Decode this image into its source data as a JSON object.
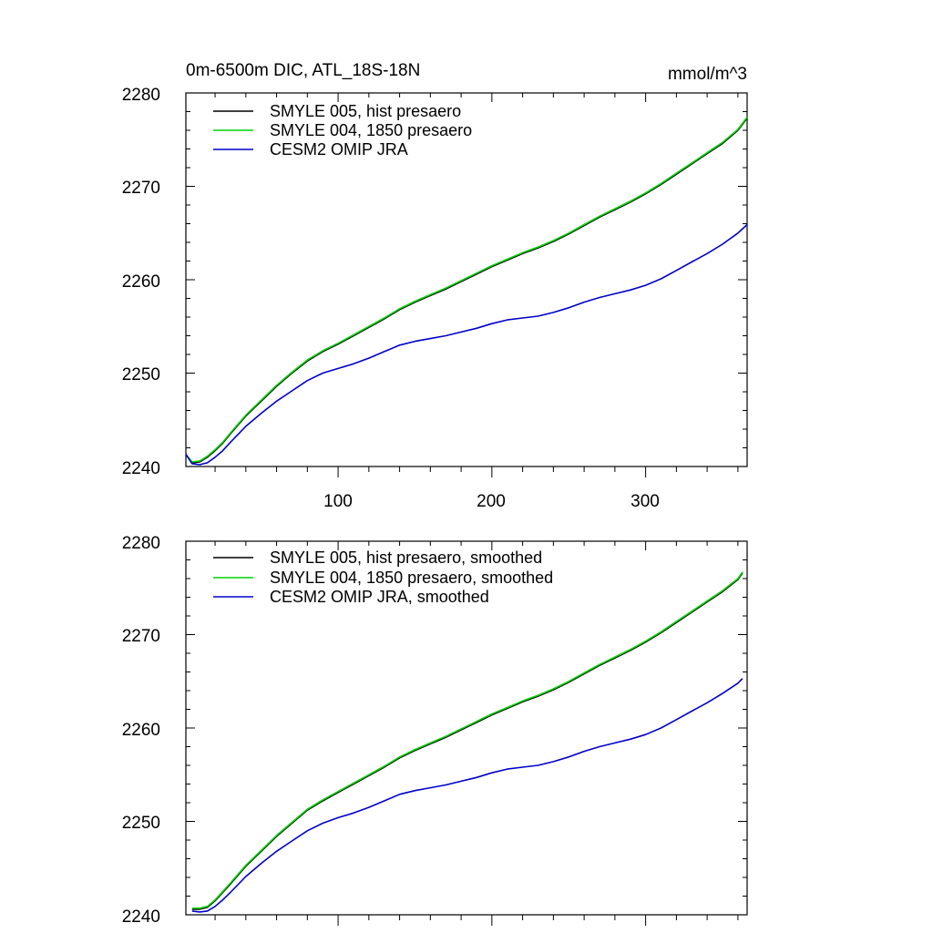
{
  "page": {
    "title": "0m-6500m DIC, ATL_18S-18N",
    "units": "mmol/m^3"
  },
  "colors": {
    "black": "#000000",
    "green": "#00d400",
    "blue": "#0000cc"
  },
  "chart_data": [
    {
      "type": "line",
      "panel": "top",
      "title": "0m-6500m DIC, ATL_18S-18N",
      "units_label": "mmol/m^3",
      "xlim": [
        1,
        366
      ],
      "ylim": [
        2240,
        2280
      ],
      "xticks": [
        100,
        200,
        300
      ],
      "yticks": [
        2240,
        2250,
        2260,
        2270,
        2280
      ],
      "x_tick_labels": [
        "100",
        "200",
        "300"
      ],
      "y_tick_labels": [
        "2240",
        "2250",
        "2260",
        "2270",
        "2280"
      ],
      "legend_position": "top-left",
      "series": [
        {
          "name": "SMYLE 005, hist presaero",
          "color": "#000000",
          "x": [
            1,
            5,
            10,
            15,
            20,
            25,
            30,
            40,
            50,
            60,
            70,
            80,
            90,
            100,
            110,
            120,
            130,
            140,
            150,
            160,
            170,
            180,
            190,
            200,
            210,
            220,
            230,
            240,
            250,
            260,
            270,
            280,
            290,
            300,
            310,
            320,
            330,
            340,
            350,
            360,
            366
          ],
          "y": [
            2241.3,
            2240.4,
            2240.5,
            2241.0,
            2241.7,
            2242.5,
            2243.5,
            2245.4,
            2247.0,
            2248.6,
            2250.0,
            2251.3,
            2252.3,
            2253.1,
            2254.0,
            2254.9,
            2255.8,
            2256.8,
            2257.6,
            2258.3,
            2259.0,
            2259.8,
            2260.6,
            2261.4,
            2262.1,
            2262.8,
            2263.4,
            2264.1,
            2264.9,
            2265.8,
            2266.7,
            2267.5,
            2268.3,
            2269.2,
            2270.2,
            2271.3,
            2272.4,
            2273.5,
            2274.6,
            2276.0,
            2277.3
          ]
        },
        {
          "name": "SMYLE 004, 1850 presaero",
          "color": "#00d400",
          "x": [
            1,
            5,
            10,
            15,
            20,
            25,
            30,
            40,
            50,
            60,
            70,
            80,
            90,
            100,
            110,
            120,
            130,
            140,
            150,
            160,
            170,
            180,
            190,
            200,
            210,
            220,
            230,
            240,
            250,
            260,
            270,
            280,
            290,
            300,
            310,
            320,
            330,
            340,
            350,
            360,
            366
          ],
          "y": [
            2241.3,
            2240.5,
            2240.6,
            2241.1,
            2241.8,
            2242.6,
            2243.6,
            2245.5,
            2247.1,
            2248.7,
            2250.1,
            2251.4,
            2252.4,
            2253.2,
            2254.1,
            2255.0,
            2255.9,
            2256.9,
            2257.7,
            2258.4,
            2259.1,
            2259.9,
            2260.7,
            2261.5,
            2262.2,
            2262.9,
            2263.5,
            2264.2,
            2265.0,
            2265.9,
            2266.8,
            2267.6,
            2268.4,
            2269.3,
            2270.3,
            2271.4,
            2272.5,
            2273.6,
            2274.7,
            2276.1,
            2277.4
          ]
        },
        {
          "name": "CESM2 OMIP JRA",
          "color": "#0000cc",
          "x": [
            1,
            5,
            10,
            15,
            20,
            25,
            30,
            40,
            50,
            60,
            70,
            80,
            90,
            100,
            110,
            120,
            130,
            140,
            150,
            160,
            170,
            180,
            190,
            200,
            210,
            220,
            230,
            240,
            250,
            260,
            270,
            280,
            290,
            300,
            310,
            320,
            330,
            340,
            350,
            360,
            366
          ],
          "y": [
            2241.3,
            2240.3,
            2240.2,
            2240.4,
            2241.0,
            2241.7,
            2242.6,
            2244.3,
            2245.7,
            2247.0,
            2248.1,
            2249.2,
            2250.0,
            2250.5,
            2251.0,
            2251.6,
            2252.3,
            2253.0,
            2253.4,
            2253.7,
            2254.0,
            2254.4,
            2254.8,
            2255.3,
            2255.7,
            2255.9,
            2256.1,
            2256.5,
            2257.0,
            2257.6,
            2258.1,
            2258.5,
            2258.9,
            2259.4,
            2260.1,
            2261.0,
            2261.9,
            2262.8,
            2263.8,
            2265.0,
            2265.9
          ]
        }
      ]
    },
    {
      "type": "line",
      "panel": "bottom",
      "xlim": [
        1,
        366
      ],
      "ylim": [
        2240,
        2280
      ],
      "yticks": [
        2240,
        2250,
        2260,
        2270,
        2280
      ],
      "y_tick_labels": [
        "2240",
        "2250",
        "2260",
        "2270",
        "2280"
      ],
      "legend_position": "top-left",
      "series": [
        {
          "name": "SMYLE 005, hist presaero, smoothed",
          "color": "#000000",
          "x": [
            5,
            10,
            15,
            20,
            25,
            30,
            40,
            50,
            60,
            70,
            80,
            90,
            100,
            110,
            120,
            130,
            140,
            150,
            160,
            170,
            180,
            190,
            200,
            210,
            220,
            230,
            240,
            250,
            260,
            270,
            280,
            290,
            300,
            310,
            320,
            330,
            340,
            350,
            360,
            363
          ],
          "y": [
            2240.6,
            2240.6,
            2240.8,
            2241.5,
            2242.4,
            2243.3,
            2245.2,
            2246.8,
            2248.4,
            2249.8,
            2251.2,
            2252.2,
            2253.1,
            2254.0,
            2254.9,
            2255.8,
            2256.8,
            2257.6,
            2258.3,
            2259.0,
            2259.8,
            2260.6,
            2261.4,
            2262.1,
            2262.8,
            2263.4,
            2264.1,
            2264.9,
            2265.8,
            2266.7,
            2267.5,
            2268.3,
            2269.2,
            2270.2,
            2271.3,
            2272.4,
            2273.5,
            2274.6,
            2275.9,
            2276.6
          ]
        },
        {
          "name": "SMYLE 004, 1850 presaero, smoothed",
          "color": "#00d400",
          "x": [
            5,
            10,
            15,
            20,
            25,
            30,
            40,
            50,
            60,
            70,
            80,
            90,
            100,
            110,
            120,
            130,
            140,
            150,
            160,
            170,
            180,
            190,
            200,
            210,
            220,
            230,
            240,
            250,
            260,
            270,
            280,
            290,
            300,
            310,
            320,
            330,
            340,
            350,
            360,
            363
          ],
          "y": [
            2240.7,
            2240.7,
            2240.9,
            2241.6,
            2242.5,
            2243.4,
            2245.3,
            2246.9,
            2248.5,
            2249.9,
            2251.3,
            2252.3,
            2253.2,
            2254.1,
            2255.0,
            2255.9,
            2256.9,
            2257.7,
            2258.4,
            2259.1,
            2259.9,
            2260.7,
            2261.5,
            2262.2,
            2262.9,
            2263.5,
            2264.2,
            2265.0,
            2265.9,
            2266.8,
            2267.6,
            2268.4,
            2269.3,
            2270.3,
            2271.4,
            2272.5,
            2273.6,
            2274.7,
            2276.0,
            2276.7
          ]
        },
        {
          "name": "CESM2 OMIP JRA, smoothed",
          "color": "#0000cc",
          "x": [
            5,
            10,
            15,
            20,
            25,
            30,
            40,
            50,
            60,
            70,
            80,
            90,
            100,
            110,
            120,
            130,
            140,
            150,
            160,
            170,
            180,
            190,
            200,
            210,
            220,
            230,
            240,
            250,
            260,
            270,
            280,
            290,
            300,
            310,
            320,
            330,
            340,
            350,
            360,
            363
          ],
          "y": [
            2240.4,
            2240.3,
            2240.4,
            2240.9,
            2241.6,
            2242.4,
            2244.1,
            2245.5,
            2246.8,
            2247.9,
            2249.0,
            2249.8,
            2250.4,
            2250.9,
            2251.5,
            2252.2,
            2252.9,
            2253.3,
            2253.6,
            2253.9,
            2254.3,
            2254.7,
            2255.2,
            2255.6,
            2255.8,
            2256.0,
            2256.4,
            2256.9,
            2257.5,
            2258.0,
            2258.4,
            2258.8,
            2259.3,
            2260.0,
            2260.9,
            2261.8,
            2262.7,
            2263.7,
            2264.8,
            2265.3
          ]
        }
      ]
    }
  ]
}
